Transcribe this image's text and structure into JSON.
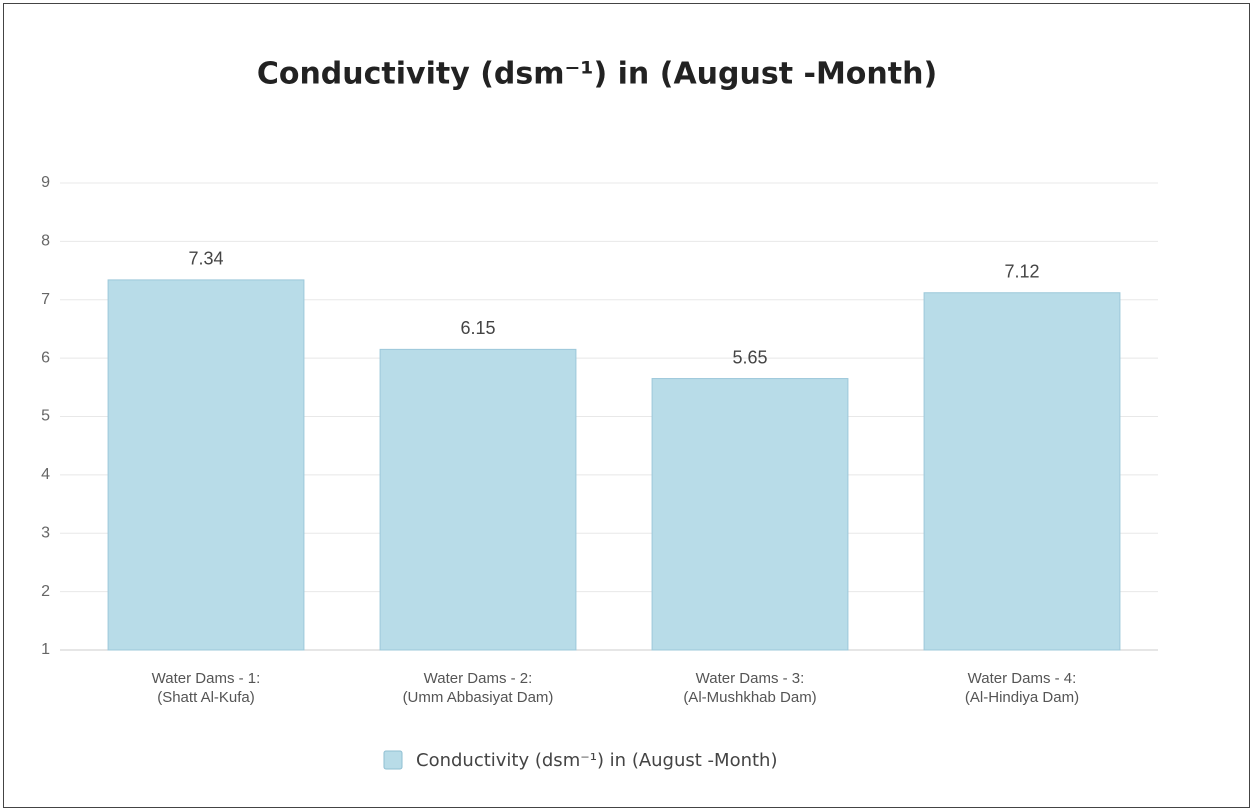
{
  "chart_data": {
    "type": "bar",
    "title": "Conductivity (dsm⁻¹) in (August -Month)",
    "categories": [
      [
        "Water Dams - 1:",
        "(Shatt Al-Kufa)"
      ],
      [
        "Water Dams - 2:",
        "(Umm Abbasiyat Dam)"
      ],
      [
        "Water Dams - 3:",
        "(Al-Mushkhab Dam)"
      ],
      [
        "Water Dams - 4:",
        "(Al-Hindiya Dam)"
      ]
    ],
    "series": [
      {
        "name": "Conductivity (dsm⁻¹) in (August -Month)",
        "color": "#b8dce8",
        "values": [
          7.34,
          6.15,
          5.65,
          7.12
        ]
      }
    ],
    "ylim": [
      1,
      9
    ],
    "yticks": [
      1,
      2,
      3,
      4,
      5,
      6,
      7,
      8,
      9
    ],
    "grid": true,
    "legend": "bottom"
  }
}
